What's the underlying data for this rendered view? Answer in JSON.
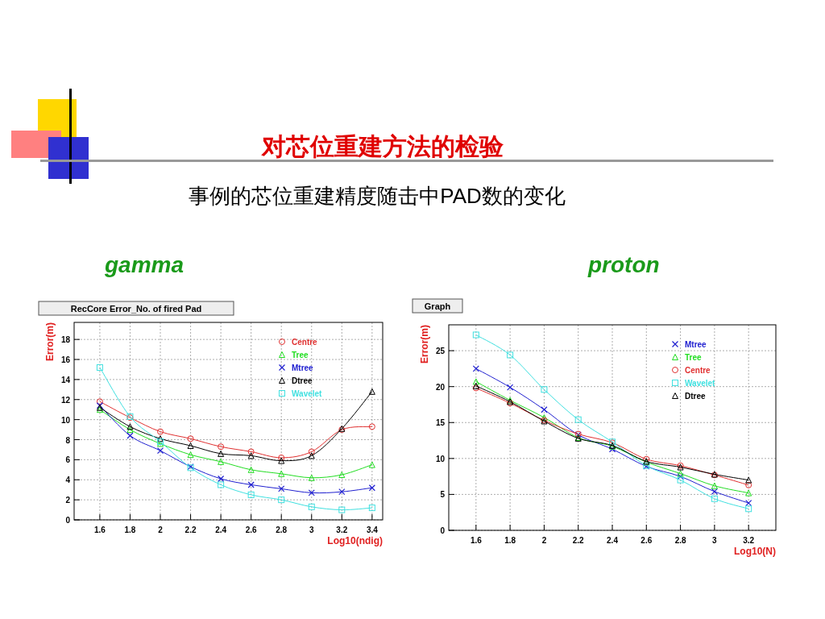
{
  "chart_data": [
    {
      "type": "other",
      "title": "对芯位重建方法的检验",
      "subtitle": "事例的芯位重建精度随击中PAD数的变化"
    },
    {
      "type": "line",
      "title": "gamma",
      "subtitle": "RecCore Error_No. of fired Pad",
      "xlabel": "Log10(ndig)",
      "ylabel": "Error(m)",
      "x": [
        1.6,
        1.8,
        2,
        2.2,
        2.4,
        2.6,
        2.8,
        3,
        3.2,
        3.4
      ],
      "xlim": [
        1.43,
        3.47
      ],
      "xticks": [
        1.6,
        1.8,
        2,
        2.2,
        2.4,
        2.6,
        2.8,
        3,
        3.2,
        3.4
      ],
      "ylim": [
        0,
        19.7
      ],
      "yticks": [
        0,
        2,
        4,
        6,
        8,
        10,
        12,
        14,
        16,
        18
      ],
      "grid": true,
      "legend": "top right",
      "series": [
        {
          "name": "Centre",
          "color": "#e03030",
          "marker": "circle",
          "values": [
            11.8,
            10.2,
            8.8,
            8.1,
            7.3,
            6.8,
            6.2,
            6.8,
            9.0,
            9.3
          ]
        },
        {
          "name": "Tree",
          "color": "#22dd22",
          "marker": "triangle",
          "values": [
            11.0,
            9.0,
            7.6,
            6.5,
            5.8,
            5.0,
            4.6,
            4.2,
            4.5,
            5.5
          ]
        },
        {
          "name": "Mtree",
          "color": "#2020d0",
          "marker": "cross",
          "values": [
            11.4,
            8.4,
            6.9,
            5.3,
            4.1,
            3.5,
            3.1,
            2.7,
            2.8,
            3.2
          ]
        },
        {
          "name": "Dtree",
          "color": "#000000",
          "marker": "triangle",
          "values": [
            11.2,
            9.3,
            8.1,
            7.4,
            6.6,
            6.4,
            5.9,
            6.4,
            9.1,
            12.8
          ]
        },
        {
          "name": "Wavelet",
          "color": "#40e0e0",
          "marker": "square",
          "values": [
            15.2,
            10.3,
            7.8,
            5.2,
            3.5,
            2.5,
            2.0,
            1.3,
            1.0,
            1.2
          ]
        }
      ]
    },
    {
      "type": "line",
      "title": "proton",
      "subtitle": "Graph",
      "xlabel": "Log10(N)",
      "ylabel": "Error(m)",
      "x": [
        1.6,
        1.8,
        2,
        2.2,
        2.4,
        2.6,
        2.8,
        3,
        3.2
      ],
      "xlim": [
        1.44,
        3.36
      ],
      "xticks": [
        1.6,
        1.8,
        2,
        2.2,
        2.4,
        2.6,
        2.8,
        3,
        3.2
      ],
      "ylim": [
        0,
        28.6
      ],
      "yticks": [
        0,
        5,
        10,
        15,
        20,
        25
      ],
      "grid": true,
      "legend": "top right",
      "series": [
        {
          "name": "Mtree",
          "color": "#2020d0",
          "marker": "cross",
          "values": [
            22.5,
            19.9,
            16.8,
            13.3,
            11.3,
            8.9,
            7.5,
            5.4,
            3.8
          ]
        },
        {
          "name": "Tree",
          "color": "#22dd22",
          "marker": "triangle",
          "values": [
            20.7,
            18.1,
            15.7,
            12.9,
            11.7,
            9.5,
            7.9,
            6.2,
            5.2
          ]
        },
        {
          "name": "Centre",
          "color": "#e03030",
          "marker": "circle",
          "values": [
            19.8,
            17.7,
            15.3,
            13.4,
            12.2,
            9.9,
            9.0,
            7.7,
            6.3
          ]
        },
        {
          "name": "Wavelet",
          "color": "#40e0e0",
          "marker": "square",
          "values": [
            27.2,
            24.4,
            19.6,
            15.4,
            12.3,
            9.0,
            7.0,
            4.4,
            3.0
          ]
        },
        {
          "name": "Dtree",
          "color": "#000000",
          "marker": "triangle",
          "values": [
            20.1,
            17.9,
            15.2,
            12.8,
            11.8,
            9.6,
            8.8,
            7.8,
            7.0
          ]
        }
      ]
    }
  ]
}
